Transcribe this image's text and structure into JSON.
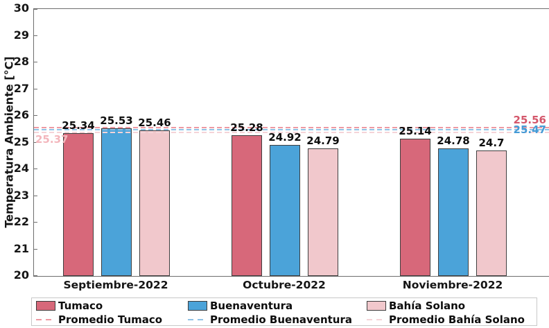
{
  "chart_data": {
    "type": "bar",
    "title": "",
    "xlabel": "",
    "ylabel": "Temperatura Ambiente [°C]",
    "ylim": [
      20,
      30
    ],
    "ytick_step": 1,
    "ytick_labels": [
      "20",
      "21",
      "22",
      "23",
      "24",
      "25",
      "26",
      "27",
      "28",
      "29",
      "30"
    ],
    "grid": false,
    "legend_position": "bottom",
    "categories": [
      "Septiembre-2022",
      "Octubre-2022",
      "Noviembre-2022"
    ],
    "series": [
      {
        "name": "Tumaco",
        "color": "#d7687a",
        "values": [
          25.34,
          25.28,
          25.14
        ],
        "value_labels": [
          "25.34",
          "25.28",
          "25.14"
        ]
      },
      {
        "name": "Buenaventura",
        "color": "#4ba3d9",
        "values": [
          25.53,
          24.92,
          24.78
        ],
        "value_labels": [
          "25.53",
          "24.92",
          "24.78"
        ]
      },
      {
        "name": "Bahía Solano",
        "color": "#f1c8cc",
        "values": [
          25.46,
          24.79,
          24.7
        ],
        "value_labels": [
          "25.46",
          "24.79",
          "24.7"
        ]
      }
    ],
    "avg_lines": [
      {
        "name": "Promedio Tumaco",
        "value": 25.56,
        "value_label": "25.56",
        "line_color": "#ee9aa2",
        "label_color": "#d4576b",
        "label_side": "right",
        "label_dy": -20
      },
      {
        "name": "Promedio Buenaventura",
        "value": 25.47,
        "value_label": "25.47",
        "line_color": "#8fc2e6",
        "label_color": "#459bd6",
        "label_side": "right",
        "label_dy": -9
      },
      {
        "name": "Promedio Bahía Solano",
        "value": 25.37,
        "value_label": "25.37",
        "line_color": "#f5d4d8",
        "label_color": "#f3b6bc",
        "label_side": "left",
        "label_dy": 1
      }
    ]
  },
  "legend": {
    "row1": [
      "Tumaco",
      "Buenaventura",
      "Bahía Solano"
    ],
    "row2": [
      "Promedio Tumaco",
      "Promedio Buenaventura",
      "Promedio Bahía Solano"
    ]
  }
}
